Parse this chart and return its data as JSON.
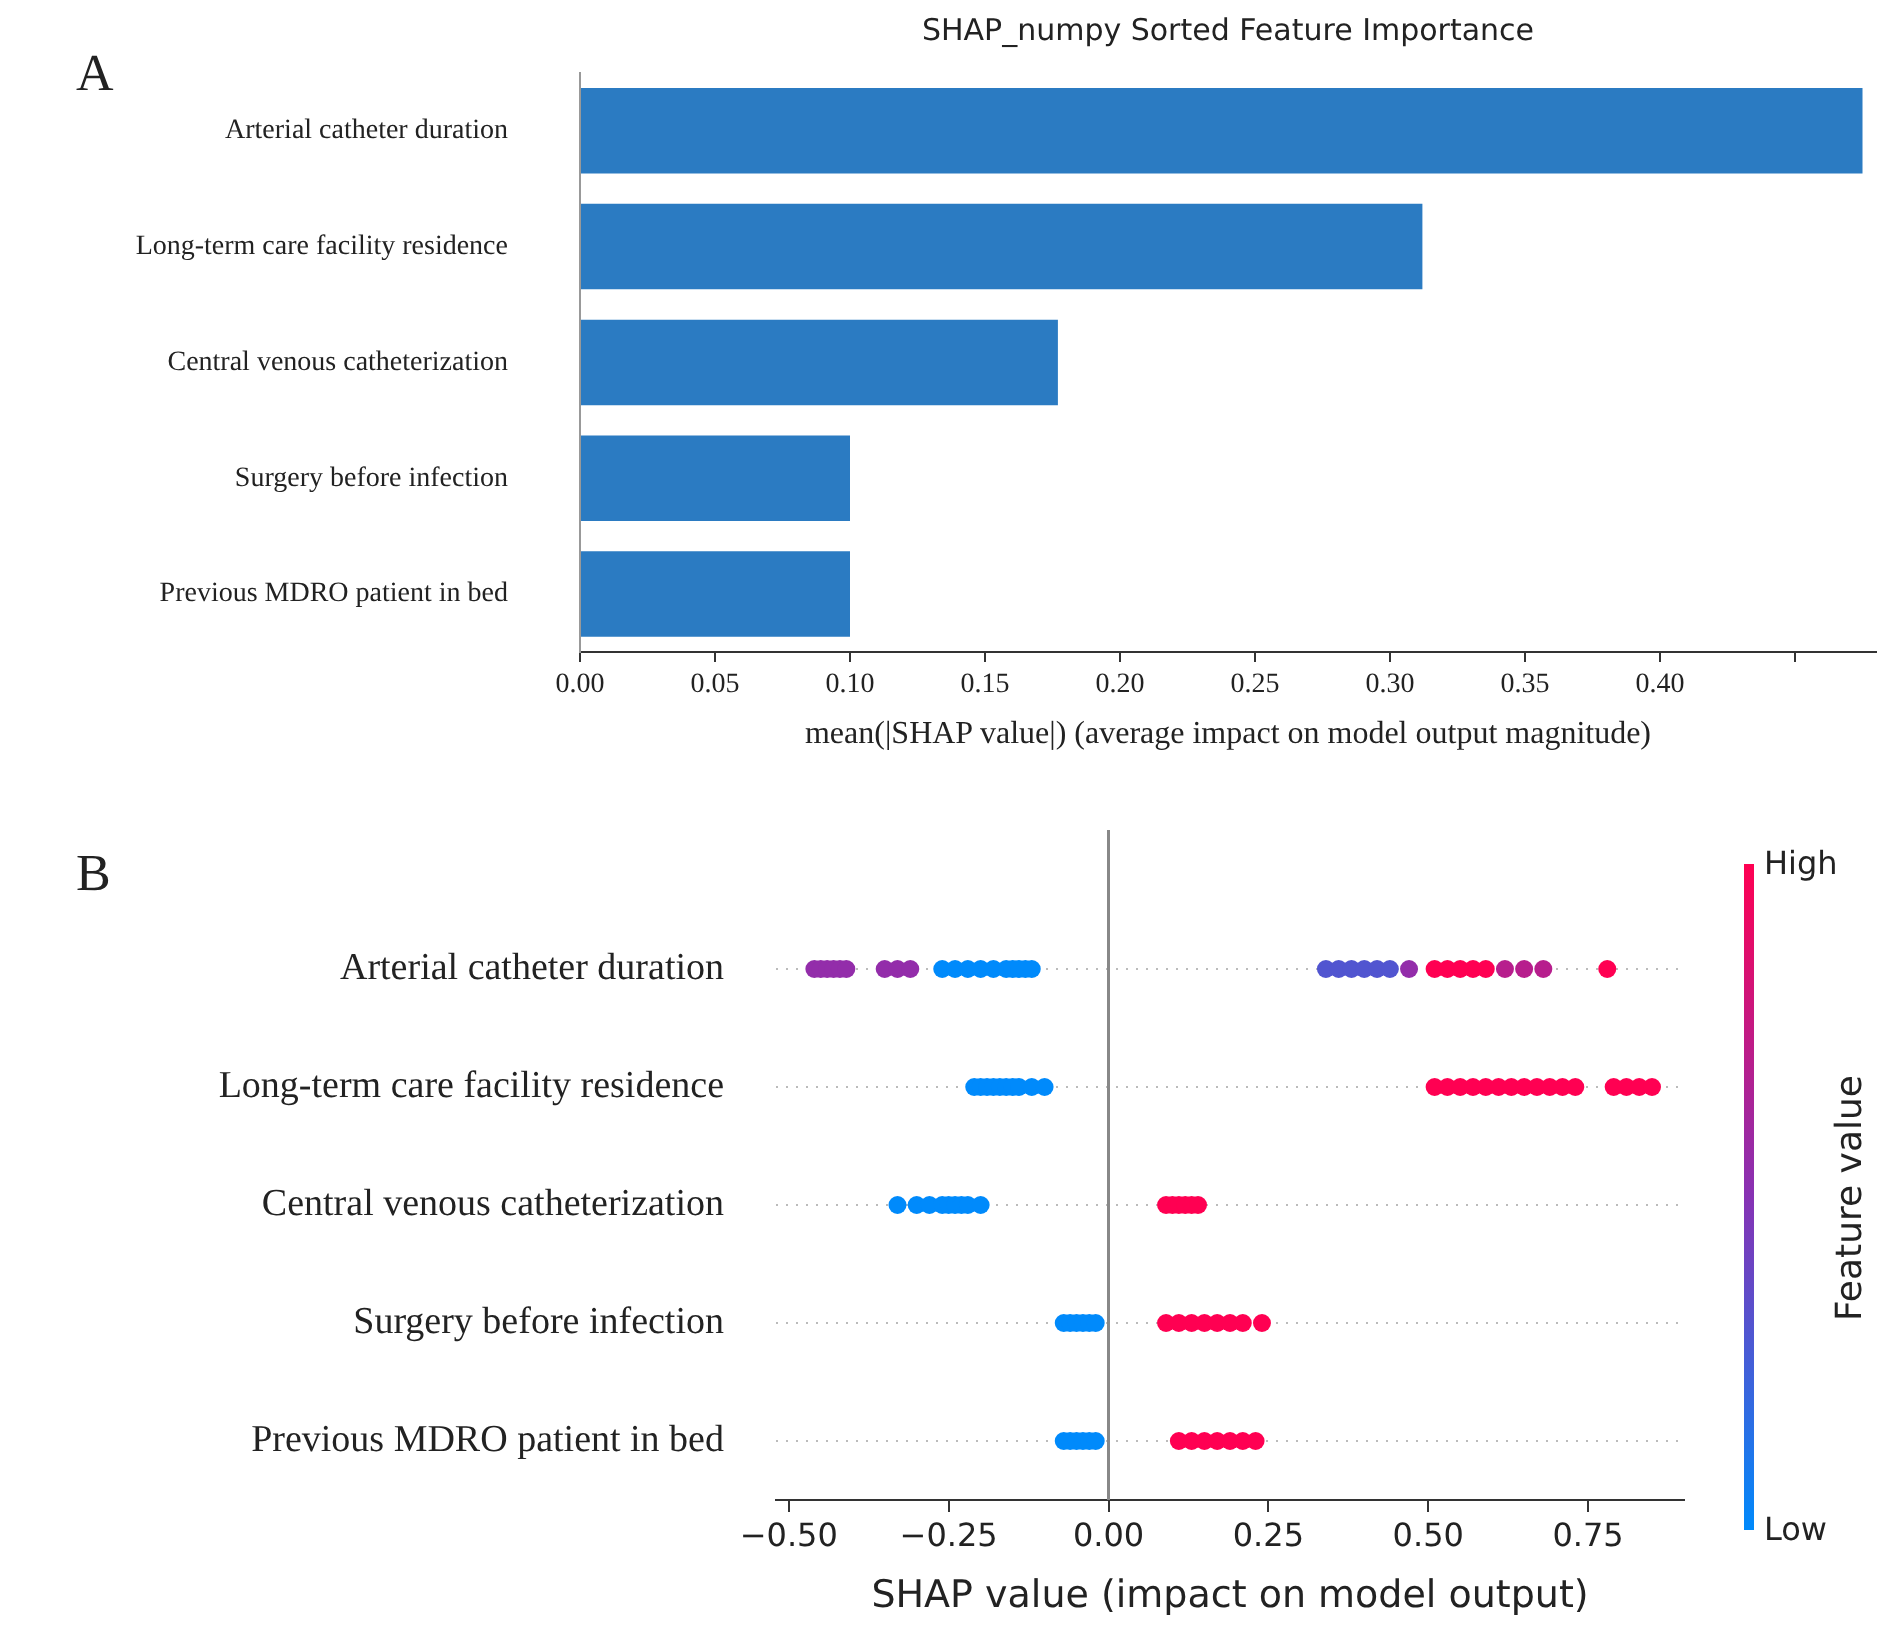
{
  "chart_data": [
    {
      "type": "bar",
      "orientation": "horizontal",
      "title": "SHAP_numpy Sorted Feature Importance",
      "xlabel": "mean(|SHAP value|) (average impact on model output magnitude)",
      "annotations": [
        "A"
      ],
      "categories": [
        "Arterial catheter duration",
        "Long-term care facility residence",
        "Central venous catheterization",
        "Surgery before infection",
        "Previous MDRO patient in bed"
      ],
      "values": [
        0.475,
        0.312,
        0.177,
        0.1,
        0.1
      ],
      "color": "#2b7bc2",
      "grid": false,
      "xlim": [
        0,
        0.48
      ],
      "xticks": [
        {
          "value": 0,
          "label": "0.00"
        },
        {
          "value": 0.05,
          "label": "0.05"
        },
        {
          "value": 0.1,
          "label": "0.10"
        },
        {
          "value": 0.15,
          "label": "0.15"
        },
        {
          "value": 0.2,
          "label": "0.20"
        },
        {
          "value": 0.25,
          "label": "0.25"
        },
        {
          "value": 0.3,
          "label": "0.30"
        },
        {
          "value": 0.35,
          "label": "0.35"
        },
        {
          "value": 0.4,
          "label": "0.40"
        },
        {
          "value": 0.45,
          "label": null
        }
      ]
    },
    {
      "type": "scatter",
      "orientation": "horizontal",
      "xlabel": "SHAP value (impact on model output)",
      "annotations": [
        "B"
      ],
      "clabel": "Feature value",
      "clim": [
        0,
        1
      ],
      "cticks": [
        {
          "value": 0,
          "label": "Low"
        },
        {
          "value": 1,
          "label": "High"
        }
      ],
      "marker": "circle",
      "grid": "y",
      "categories": [
        "Arterial catheter duration",
        "Long-term care facility residence",
        "Central venous catheterization",
        "Surgery before infection",
        "Previous MDRO patient in bed"
      ],
      "xlim": [
        -0.52,
        0.9
      ],
      "xticks": [
        {
          "value": -0.5,
          "label": "−0.50"
        },
        {
          "value": -0.25,
          "label": "−0.25"
        },
        {
          "value": 0,
          "label": "0.00"
        },
        {
          "value": 0.25,
          "label": "0.25"
        },
        {
          "value": 0.5,
          "label": "0.50"
        },
        {
          "value": 0.75,
          "label": "0.75"
        }
      ],
      "ref_lines": [
        {
          "axis": "x",
          "value": 0,
          "color": "#888888"
        }
      ],
      "series": [
        {
          "x": [
            "Arterial catheter duration",
            "Arterial catheter duration",
            "Arterial catheter duration",
            "Arterial catheter duration",
            "Arterial catheter duration",
            "Arterial catheter duration",
            "Arterial catheter duration",
            "Arterial catheter duration",
            "Arterial catheter duration",
            "Arterial catheter duration",
            "Arterial catheter duration",
            "Arterial catheter duration",
            "Arterial catheter duration",
            "Arterial catheter duration",
            "Arterial catheter duration",
            "Arterial catheter duration",
            "Arterial catheter duration",
            "Arterial catheter duration",
            "Arterial catheter duration",
            "Arterial catheter duration",
            "Arterial catheter duration",
            "Arterial catheter duration",
            "Arterial catheter duration",
            "Arterial catheter duration",
            "Arterial catheter duration",
            "Arterial catheter duration",
            "Arterial catheter duration",
            "Arterial catheter duration",
            "Arterial catheter duration",
            "Arterial catheter duration",
            "Arterial catheter duration",
            "Arterial catheter duration",
            "Arterial catheter duration",
            "Arterial catheter duration",
            "Arterial catheter duration",
            "Long-term care facility residence",
            "Long-term care facility residence",
            "Long-term care facility residence",
            "Long-term care facility residence",
            "Long-term care facility residence",
            "Long-term care facility residence",
            "Long-term care facility residence",
            "Long-term care facility residence",
            "Long-term care facility residence",
            "Long-term care facility residence",
            "Long-term care facility residence",
            "Long-term care facility residence",
            "Long-term care facility residence",
            "Long-term care facility residence",
            "Long-term care facility residence",
            "Long-term care facility residence",
            "Long-term care facility residence",
            "Long-term care facility residence",
            "Long-term care facility residence",
            "Long-term care facility residence",
            "Long-term care facility residence",
            "Long-term care facility residence",
            "Long-term care facility residence",
            "Long-term care facility residence",
            "Long-term care facility residence",
            "Long-term care facility residence",
            "Central venous catheterization",
            "Central venous catheterization",
            "Central venous catheterization",
            "Central venous catheterization",
            "Central venous catheterization",
            "Central venous catheterization",
            "Central venous catheterization",
            "Central venous catheterization",
            "Central venous catheterization",
            "Central venous catheterization",
            "Central venous catheterization",
            "Central venous catheterization",
            "Central venous catheterization",
            "Central venous catheterization",
            "Central venous catheterization",
            "Surgery before infection",
            "Surgery before infection",
            "Surgery before infection",
            "Surgery before infection",
            "Surgery before infection",
            "Surgery before infection",
            "Surgery before infection",
            "Surgery before infection",
            "Surgery before infection",
            "Surgery before infection",
            "Surgery before infection",
            "Surgery before infection",
            "Surgery before infection",
            "Surgery before infection",
            "Previous MDRO patient in bed",
            "Previous MDRO patient in bed",
            "Previous MDRO patient in bed",
            "Previous MDRO patient in bed",
            "Previous MDRO patient in bed",
            "Previous MDRO patient in bed",
            "Previous MDRO patient in bed",
            "Previous MDRO patient in bed",
            "Previous MDRO patient in bed",
            "Previous MDRO patient in bed",
            "Previous MDRO patient in bed",
            "Previous MDRO patient in bed",
            "Previous MDRO patient in bed"
          ],
          "values": [
            -0.46,
            -0.45,
            -0.44,
            -0.43,
            -0.42,
            -0.41,
            -0.35,
            -0.33,
            -0.31,
            -0.26,
            -0.24,
            -0.22,
            -0.2,
            -0.18,
            -0.16,
            -0.15,
            -0.14,
            -0.13,
            -0.12,
            0.34,
            0.36,
            0.38,
            0.4,
            0.42,
            0.44,
            0.47,
            0.51,
            0.53,
            0.55,
            0.57,
            0.59,
            0.62,
            0.65,
            0.68,
            0.78,
            -0.21,
            -0.2,
            -0.19,
            -0.18,
            -0.17,
            -0.16,
            -0.15,
            -0.14,
            -0.12,
            -0.1,
            0.51,
            0.53,
            0.55,
            0.57,
            0.59,
            0.61,
            0.63,
            0.65,
            0.67,
            0.69,
            0.71,
            0.73,
            0.79,
            0.81,
            0.83,
            0.85,
            -0.33,
            -0.3,
            -0.28,
            -0.26,
            -0.25,
            -0.24,
            -0.23,
            -0.22,
            -0.2,
            0.09,
            0.1,
            0.11,
            0.12,
            0.13,
            0.14,
            -0.07,
            -0.06,
            -0.05,
            -0.04,
            -0.03,
            -0.02,
            0.09,
            0.11,
            0.13,
            0.15,
            0.17,
            0.19,
            0.21,
            0.24,
            -0.07,
            -0.06,
            -0.05,
            -0.04,
            -0.03,
            -0.02,
            0.11,
            0.13,
            0.15,
            0.17,
            0.19,
            0.21,
            0.23
          ],
          "cvalues": [
            0.55,
            0.55,
            0.55,
            0.55,
            0.55,
            0.55,
            0.55,
            0.55,
            0.55,
            0,
            0,
            0,
            0,
            0,
            0,
            0,
            0,
            0,
            0,
            0.3,
            0.3,
            0.3,
            0.3,
            0.3,
            0.3,
            0.55,
            1,
            1,
            1,
            1,
            1,
            0.7,
            0.7,
            0.7,
            1,
            0,
            0,
            0,
            0,
            0,
            0,
            0,
            0,
            0,
            0,
            1,
            1,
            1,
            1,
            1,
            1,
            1,
            1,
            1,
            1,
            1,
            1,
            1,
            1,
            1,
            1,
            0,
            0,
            0,
            0,
            0,
            0,
            0,
            0,
            0,
            1,
            1,
            1,
            1,
            1,
            1,
            0,
            0,
            0,
            0,
            0,
            0,
            1,
            1,
            1,
            1,
            1,
            1,
            1,
            1,
            0,
            0,
            0,
            0,
            0,
            0,
            1,
            1,
            1,
            1,
            1,
            1,
            1
          ]
        }
      ]
    }
  ]
}
